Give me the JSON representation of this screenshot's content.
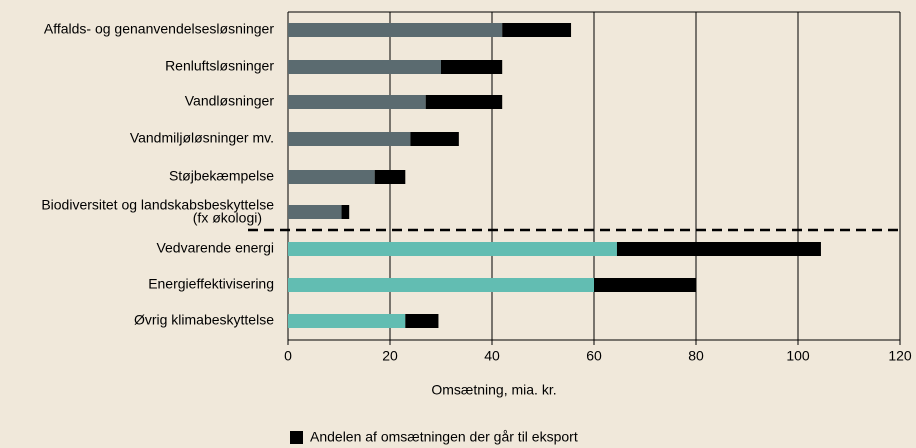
{
  "chart_data": {
    "type": "stacked-barh",
    "categories": [
      "Affalds- og genanvendelsesløsninger",
      "Renluftsløsninger",
      "Vandløsninger",
      "Vandmiljøløsninger mv.",
      "Støjbekæmpelse",
      "Biodiversitet og landskabsbeskyttelse\n(fx økologi)",
      "Vedvarende energi",
      "Energieffektivisering",
      "Øvrig klimabeskyttelse"
    ],
    "series": [
      {
        "colors": [
          "#5b6b70",
          "#5b6b70",
          "#5b6b70",
          "#5b6b70",
          "#5b6b70",
          "#5b6b70",
          "#62bdb2",
          "#62bdb2",
          "#62bdb2"
        ],
        "values": [
          42,
          30,
          27,
          24,
          17,
          10.5,
          64.5,
          60,
          23
        ]
      },
      {
        "name": "Andelen af omsætningen der går til eksport",
        "color": "#000000",
        "values": [
          13.5,
          12,
          15,
          9.5,
          6,
          1.5,
          40,
          20,
          6.5
        ]
      }
    ],
    "xlabel": "Omsætning, mia. kr.",
    "xlim": [
      0,
      120
    ],
    "xticks": [
      0,
      20,
      40,
      60,
      80,
      100,
      120
    ],
    "grid": true,
    "legend": "bottom"
  }
}
